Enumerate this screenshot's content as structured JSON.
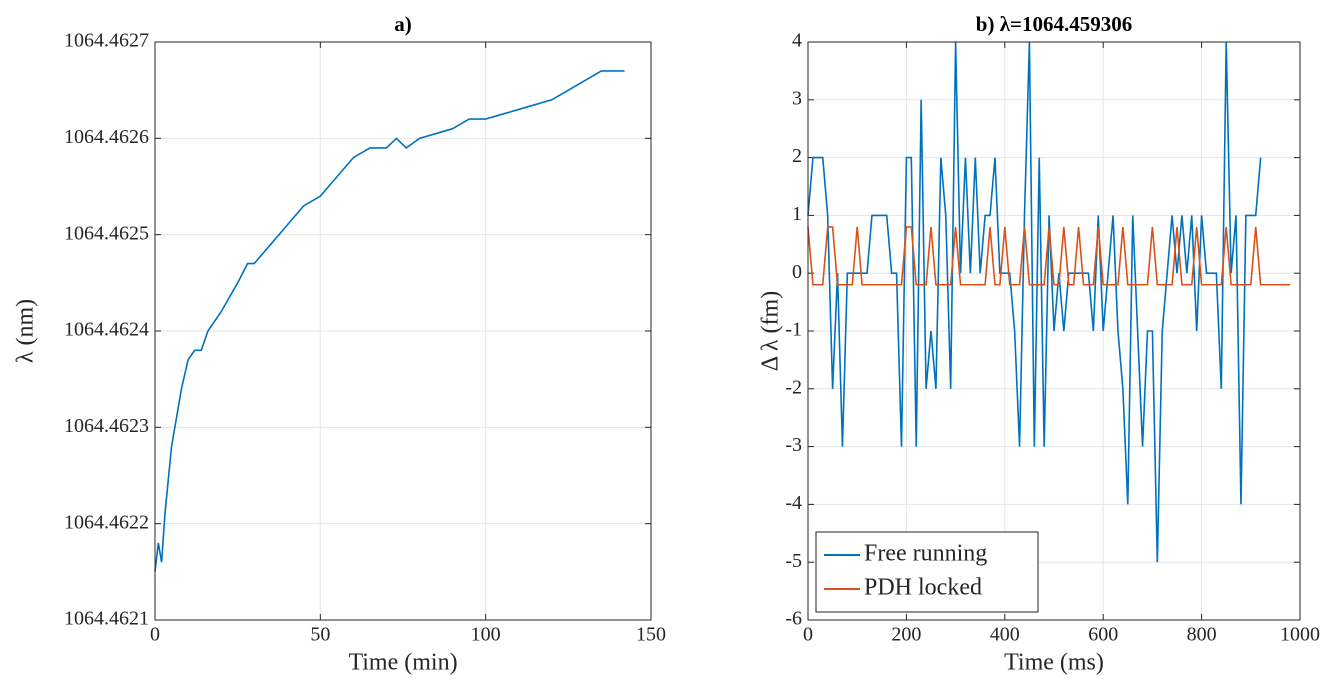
{
  "chart_data": [
    {
      "type": "line",
      "title": "a)",
      "xlabel": "Time (min)",
      "ylabel": "λ (nm)",
      "x": [
        0,
        1,
        2,
        3,
        5,
        6,
        8,
        10,
        12,
        14,
        16,
        20,
        25,
        28,
        30,
        35,
        40,
        45,
        50,
        55,
        60,
        65,
        70,
        73,
        76,
        80,
        90,
        95,
        100,
        110,
        120,
        125,
        130,
        135,
        142
      ],
      "series": [
        {
          "name": "λ",
          "color": "#0072bd",
          "values": [
            1064.46215,
            1064.46218,
            1064.46216,
            1064.46221,
            1064.46228,
            1064.4623,
            1064.46234,
            1064.46237,
            1064.46238,
            1064.46238,
            1064.4624,
            1064.46242,
            1064.46245,
            1064.46247,
            1064.46247,
            1064.46249,
            1064.46251,
            1064.46253,
            1064.46254,
            1064.46256,
            1064.46258,
            1064.46259,
            1064.46259,
            1064.4626,
            1064.46259,
            1064.4626,
            1064.46261,
            1064.46262,
            1064.46262,
            1064.46263,
            1064.46264,
            1064.46265,
            1064.46266,
            1064.46267,
            1064.46267
          ]
        }
      ],
      "xlim": [
        0,
        150
      ],
      "xticks": [
        0,
        50,
        100,
        150
      ],
      "ylim": [
        1064.4621,
        1064.4627
      ],
      "yticks": [
        1064.4621,
        1064.4622,
        1064.4623,
        1064.4624,
        1064.4625,
        1064.4626,
        1064.4627
      ],
      "grid": true
    },
    {
      "type": "line",
      "title": "b) λ=1064.459306",
      "xlabel": "Time (ms)",
      "ylabel": "Δ λ (fm)",
      "x": [
        0,
        10,
        20,
        30,
        40,
        50,
        60,
        70,
        80,
        90,
        100,
        110,
        120,
        130,
        140,
        150,
        160,
        170,
        180,
        190,
        200,
        210,
        220,
        230,
        240,
        250,
        260,
        270,
        280,
        290,
        300,
        310,
        320,
        330,
        340,
        350,
        360,
        370,
        380,
        390,
        400,
        410,
        420,
        430,
        440,
        450,
        460,
        470,
        480,
        490,
        500,
        510,
        520,
        530,
        540,
        550,
        560,
        570,
        580,
        590,
        600,
        610,
        620,
        630,
        640,
        650,
        660,
        670,
        680,
        690,
        700,
        710,
        720,
        730,
        740,
        750,
        760,
        770,
        780,
        790,
        800,
        810,
        820,
        830,
        840,
        850,
        860,
        870,
        880,
        890,
        900,
        910,
        920,
        930,
        940,
        950,
        960,
        970,
        980
      ],
      "series": [
        {
          "name": "Free running",
          "color": "#0072bd",
          "values": [
            1,
            2,
            2,
            2,
            1,
            -2,
            0,
            -3,
            0,
            0,
            0,
            0,
            0,
            1,
            1,
            1,
            1,
            0,
            0,
            -3,
            2,
            2,
            -3,
            3,
            -2,
            -1,
            -2,
            2,
            1,
            -2,
            4,
            0,
            2,
            0,
            2,
            0,
            1,
            1,
            2,
            0,
            0,
            0,
            -1,
            -3,
            1,
            4,
            -3,
            2,
            -3,
            1,
            -1,
            0,
            -1,
            0,
            0,
            0,
            0,
            0,
            -1,
            1,
            -1,
            0,
            1,
            -1,
            -2,
            -4,
            1,
            -1,
            -3,
            -1,
            -1,
            -5,
            -1,
            0,
            1,
            0,
            1,
            0,
            1,
            -1,
            1,
            0,
            0,
            0,
            -2,
            4,
            0,
            1,
            -4,
            1,
            1,
            1,
            2,
            null,
            null,
            null,
            null,
            null,
            null
          ]
        },
        {
          "name": "PDH locked",
          "color": "#d95319",
          "values": [
            0.8,
            -0.2,
            -0.2,
            -0.2,
            0.8,
            0.8,
            -0.2,
            -0.2,
            -0.2,
            -0.2,
            0.8,
            -0.2,
            -0.2,
            -0.2,
            -0.2,
            -0.2,
            -0.2,
            -0.2,
            -0.2,
            -0.2,
            0.8,
            0.8,
            -0.2,
            -0.2,
            -0.2,
            0.8,
            -0.2,
            -0.2,
            -0.2,
            -0.2,
            0.8,
            -0.2,
            -0.2,
            -0.2,
            -0.2,
            -0.2,
            -0.2,
            0.8,
            -0.2,
            -0.2,
            0.8,
            -0.2,
            -0.2,
            -0.2,
            0.8,
            -0.2,
            -0.2,
            -0.2,
            -0.2,
            0.8,
            -0.2,
            -0.2,
            0.8,
            -0.2,
            -0.2,
            0.8,
            -0.2,
            -0.2,
            -0.2,
            0.8,
            -0.2,
            -0.2,
            -0.2,
            -0.2,
            0.8,
            -0.2,
            -0.2,
            -0.2,
            -0.2,
            -0.2,
            0.8,
            -0.2,
            -0.2,
            -0.2,
            -0.2,
            0.8,
            -0.2,
            -0.2,
            -0.2,
            0.8,
            -0.2,
            -0.2,
            -0.2,
            -0.2,
            -0.2,
            0.8,
            -0.2,
            -0.2,
            -0.2,
            -0.2,
            -0.2,
            0.8,
            -0.2,
            -0.2,
            -0.2,
            -0.2,
            -0.2,
            -0.2,
            -0.2
          ]
        }
      ],
      "xlim": [
        0,
        1000
      ],
      "xticks": [
        0,
        200,
        400,
        600,
        800,
        1000
      ],
      "ylim": [
        -6,
        4
      ],
      "yticks": [
        -6,
        -5,
        -4,
        -3,
        -2,
        -1,
        0,
        1,
        2,
        3,
        4
      ],
      "grid": true,
      "legend": "lower left"
    }
  ]
}
